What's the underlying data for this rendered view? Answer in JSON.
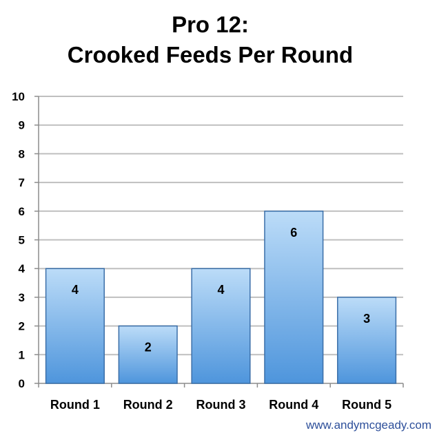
{
  "chart_data": {
    "type": "bar",
    "title": "Pro 12:",
    "subtitle": "Crooked Feeds Per Round",
    "categories": [
      "Round 1",
      "Round 2",
      "Round 3",
      "Round 4",
      "Round 5"
    ],
    "values": [
      4,
      2,
      4,
      6,
      3
    ],
    "ylim": [
      0,
      10
    ],
    "yticks": [
      "0",
      "1",
      "2",
      "3",
      "4",
      "5",
      "6",
      "7",
      "8",
      "9",
      "10"
    ],
    "grid": true,
    "data_labels": true,
    "colors": {
      "bar_top": "#bcdcf8",
      "bar_bottom": "#4e95dc",
      "bar_edge": "#3a6ea8",
      "grid": "#bfbfbf",
      "axis": "#8c8c8c"
    }
  },
  "footer": {
    "credit": "www.andymcgeady.com"
  }
}
